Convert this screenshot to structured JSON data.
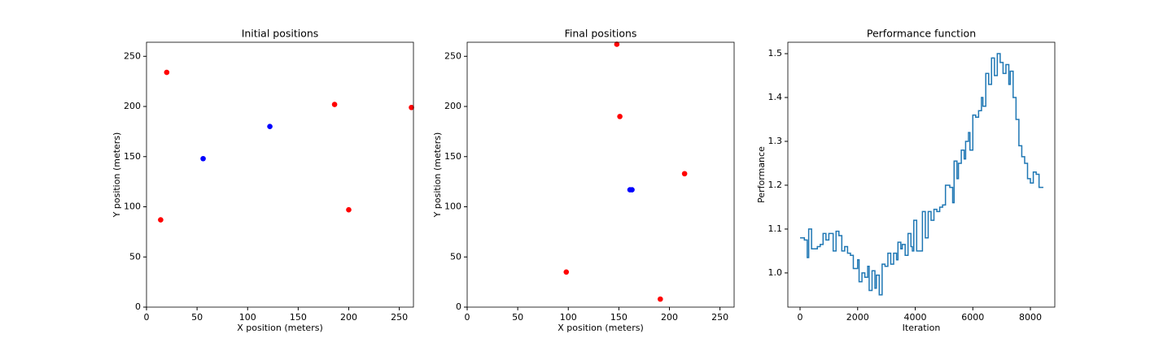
{
  "chart_data": [
    {
      "type": "scatter",
      "title": "Initial positions",
      "x_label": "X position (meters)",
      "y_label": "Y position (meters)",
      "series": [
        {
          "color": "#ff0000",
          "x": [
            20,
            14,
            186,
            200,
            262
          ],
          "y": [
            234,
            87,
            202,
            97,
            199
          ]
        },
        {
          "color": "#0000ff",
          "x": [
            56,
            122
          ],
          "y": [
            148,
            180
          ]
        }
      ],
      "xlim": [
        0,
        264
      ],
      "ylim": [
        0,
        264
      ],
      "xticks": [
        0,
        50,
        100,
        150,
        200,
        250
      ],
      "yticks": [
        0,
        50,
        100,
        150,
        200,
        250
      ]
    },
    {
      "type": "scatter",
      "title": "Final positions",
      "x_label": "X position (meters)",
      "y_label": "Y position (meters)",
      "series": [
        {
          "color": "#ff0000",
          "x": [
            148,
            151,
            215,
            98,
            191
          ],
          "y": [
            262,
            190,
            133,
            35,
            8
          ]
        },
        {
          "color": "#0000ff",
          "x": [
            161,
            163
          ],
          "y": [
            117,
            117
          ]
        }
      ],
      "xlim": [
        0,
        264
      ],
      "ylim": [
        0,
        264
      ],
      "xticks": [
        0,
        50,
        100,
        150,
        200,
        250
      ],
      "yticks": [
        0,
        50,
        100,
        150,
        200,
        250
      ]
    },
    {
      "type": "step",
      "title": "Performance function",
      "x_label": "Iteration",
      "y_label": "Performance",
      "series": [
        {
          "color": "#1f77b4",
          "x": [
            0,
            150,
            250,
            300,
            400,
            600,
            700,
            800,
            900,
            1000,
            1150,
            1250,
            1350,
            1450,
            1550,
            1650,
            1750,
            1850,
            2000,
            2050,
            2150,
            2250,
            2350,
            2400,
            2500,
            2600,
            2650,
            2750,
            2850,
            2950,
            3050,
            3150,
            3250,
            3350,
            3400,
            3500,
            3550,
            3650,
            3750,
            3850,
            3900,
            3950,
            4050,
            4150,
            4250,
            4350,
            4450,
            4550,
            4650,
            4750,
            4850,
            4950,
            5050,
            5200,
            5300,
            5350,
            5450,
            5500,
            5600,
            5700,
            5750,
            5850,
            5900,
            6000,
            6100,
            6200,
            6300,
            6350,
            6450,
            6550,
            6650,
            6750,
            6850,
            6950,
            7050,
            7150,
            7250,
            7300,
            7400,
            7500,
            7600,
            7700,
            7800,
            7900,
            8000,
            8100,
            8200,
            8300,
            8450
          ],
          "y": [
            1.08,
            1.075,
            1.035,
            1.1,
            1.055,
            1.06,
            1.065,
            1.09,
            1.075,
            1.09,
            1.05,
            1.095,
            1.085,
            1.05,
            1.06,
            1.045,
            1.04,
            1.01,
            1.03,
            0.98,
            1.0,
            0.99,
            1.015,
            0.96,
            1.005,
            0.965,
            0.995,
            0.95,
            1.02,
            1.015,
            1.045,
            1.02,
            1.045,
            1.03,
            1.07,
            1.055,
            1.065,
            1.04,
            1.09,
            1.06,
            1.05,
            1.12,
            1.05,
            1.05,
            1.14,
            1.08,
            1.14,
            1.12,
            1.145,
            1.14,
            1.15,
            1.155,
            1.2,
            1.195,
            1.16,
            1.255,
            1.215,
            1.25,
            1.28,
            1.26,
            1.3,
            1.32,
            1.28,
            1.36,
            1.355,
            1.37,
            1.4,
            1.38,
            1.455,
            1.43,
            1.49,
            1.45,
            1.5,
            1.48,
            1.455,
            1.475,
            1.43,
            1.46,
            1.4,
            1.35,
            1.29,
            1.265,
            1.25,
            1.215,
            1.205,
            1.23,
            1.225,
            1.195,
            1.195
          ]
        }
      ],
      "xlim": [
        -424,
        8847
      ],
      "ylim": [
        0.922,
        1.526
      ],
      "xticks": [
        0,
        2000,
        4000,
        6000,
        8000
      ],
      "yticks": [
        {
          "value": 1,
          "label": "1.0"
        },
        {
          "value": 1.1,
          "label": "1.1"
        },
        {
          "value": 1.2,
          "label": "1.2"
        },
        {
          "value": 1.3,
          "label": "1.3"
        },
        {
          "value": 1.4,
          "label": "1.4"
        },
        {
          "value": 1.5,
          "label": "1.5"
        }
      ]
    }
  ]
}
